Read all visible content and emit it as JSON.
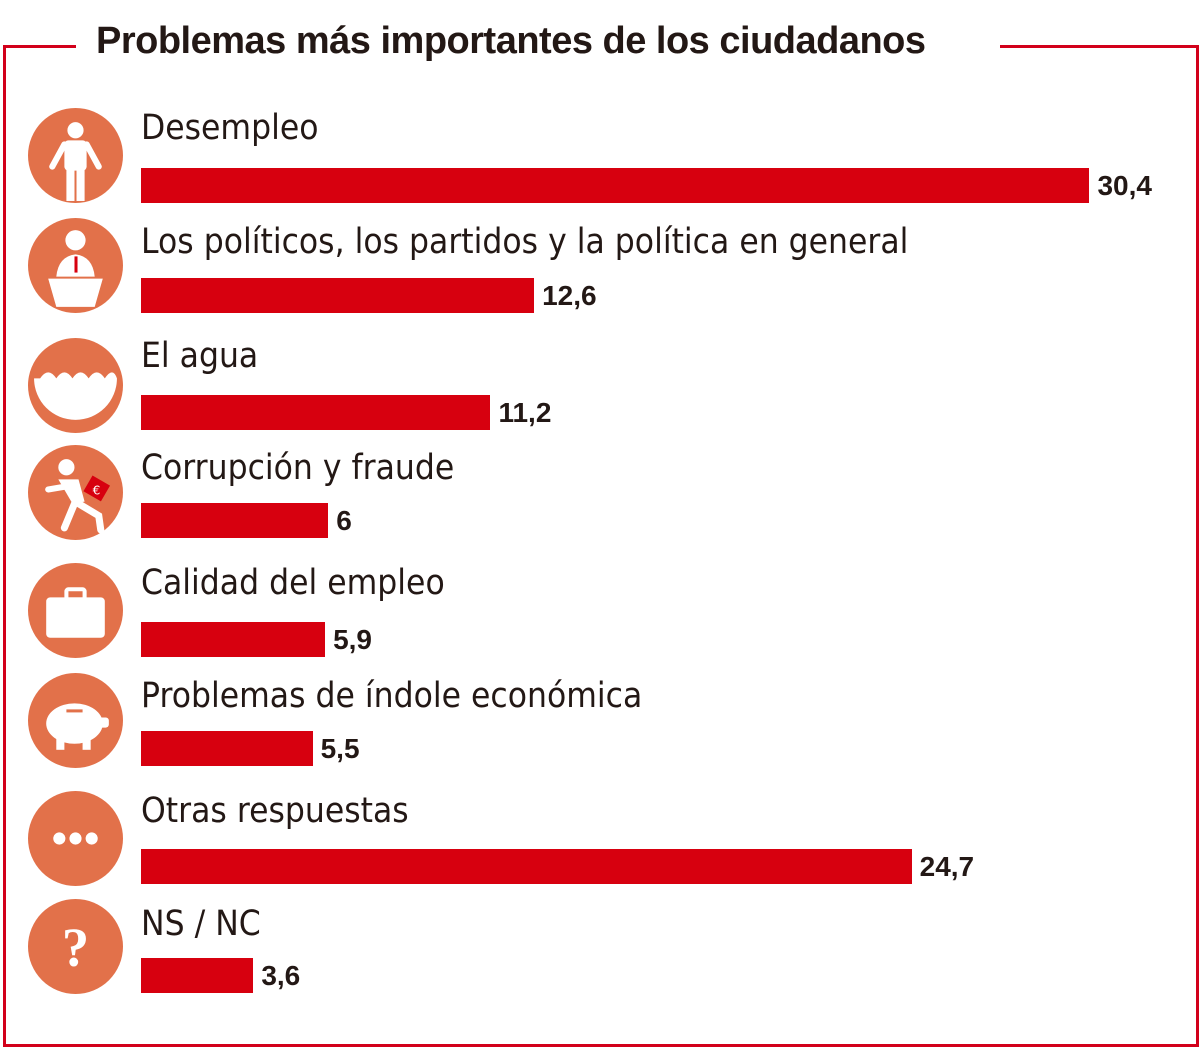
{
  "chart_data": {
    "type": "bar",
    "orientation": "horizontal",
    "title": "Problemas más importantes de los ciudadanos",
    "categories": [
      "Desempleo",
      "Los políticos, los partidos y la política en general",
      "El agua",
      "Corrupción y fraude",
      "Calidad del empleo",
      "Problemas de índole económica",
      "Otras respuestas",
      "NS / NC"
    ],
    "values": [
      30.4,
      12.6,
      11.2,
      6,
      5.9,
      5.5,
      24.7,
      3.6
    ],
    "value_labels": [
      "30,4",
      "12,6",
      "11,2",
      "6",
      "5,9",
      "5,5",
      "24,7",
      "3,6"
    ],
    "icons": [
      "unemployed-person-icon",
      "politician-podium-icon",
      "water-icon",
      "thief-running-icon",
      "briefcase-icon",
      "piggy-bank-icon",
      "ellipsis-icon",
      "question-mark-icon"
    ],
    "grid": false,
    "legend": "none"
  },
  "colors": {
    "bar": "#d7000f",
    "icon_circle": "#e2714a",
    "frame": "#d2001a",
    "text": "#231815"
  }
}
